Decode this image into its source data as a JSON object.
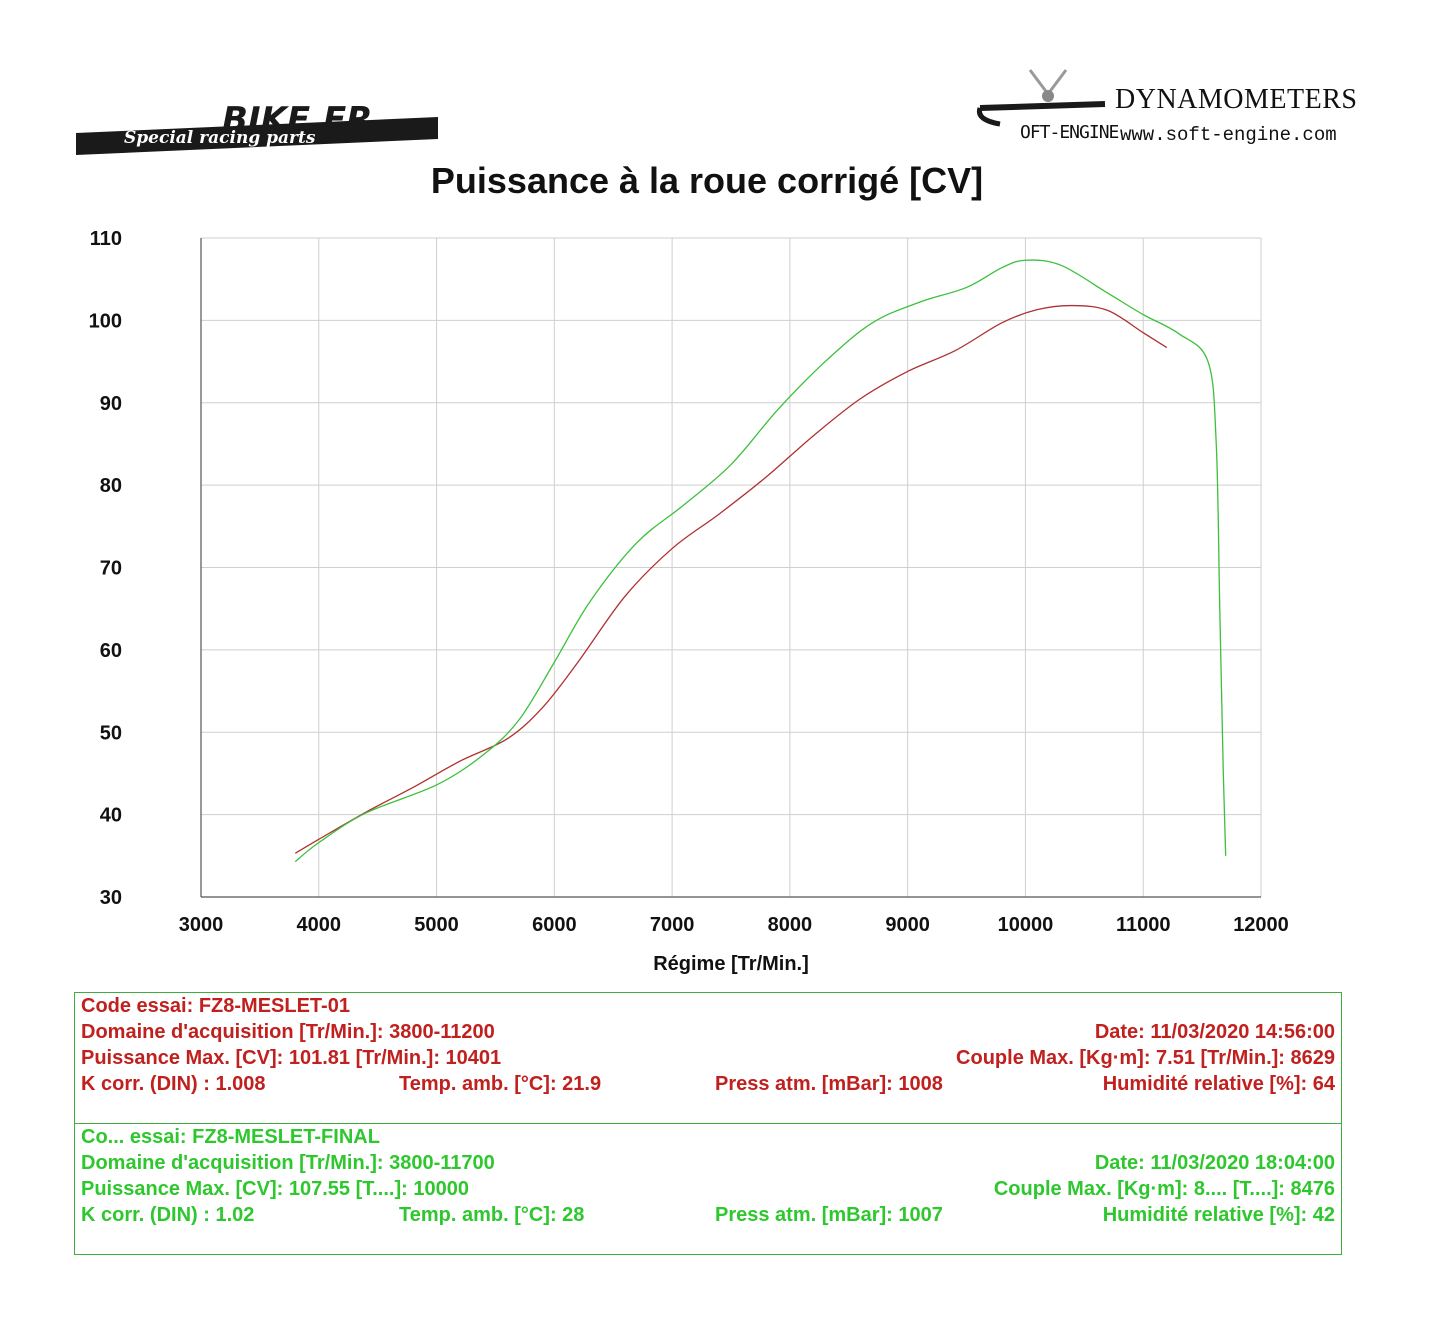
{
  "header": {
    "logo_left_text": "BIKE.FR",
    "logo_left_tagline": "Special racing parts",
    "logo_right_title": "DYNAMOMETERS",
    "logo_right_brand": "OFT-ENGINE",
    "logo_right_url": "www.soft-engine.com"
  },
  "colors": {
    "run1": "#b03030",
    "run2": "#3cc03c",
    "grid": "#cfcfcf"
  },
  "chart_data": {
    "type": "line",
    "title": "Puissance à la roue corrigé [CV]",
    "xlabel": "Régime [Tr/Min.]",
    "ylabel": "",
    "xlim": [
      3000,
      12000
    ],
    "ylim": [
      30,
      110
    ],
    "x_ticks": [
      "3000",
      "4000",
      "5000",
      "6000",
      "7000",
      "8000",
      "9000",
      "10000",
      "11000",
      "12000"
    ],
    "y_ticks": [
      "110",
      "100",
      "90",
      "80",
      "70",
      "60",
      "50",
      "40",
      "30"
    ],
    "grid": true,
    "series": [
      {
        "name": "FZ8-MESLET-01",
        "color": "#b03030",
        "x": [
          3800,
          4000,
          4400,
          4800,
          5200,
          5600,
          5900,
          6200,
          6600,
          7000,
          7400,
          7800,
          8200,
          8600,
          9000,
          9400,
          9800,
          10100,
          10400,
          10700,
          11000,
          11200
        ],
        "y": [
          35.3,
          37.0,
          40.3,
          43.3,
          46.5,
          49.2,
          53.0,
          58.5,
          66.5,
          72.3,
          76.5,
          81.0,
          86.0,
          90.5,
          93.8,
          96.3,
          99.7,
          101.3,
          101.8,
          101.2,
          98.5,
          96.7
        ]
      },
      {
        "name": "FZ8-MESLET-FINAL",
        "color": "#3cc03c",
        "x": [
          3800,
          4000,
          4400,
          5000,
          5400,
          5700,
          6000,
          6300,
          6700,
          7100,
          7500,
          7900,
          8300,
          8700,
          9100,
          9500,
          9800,
          10000,
          10300,
          10700,
          11000,
          11300,
          11550,
          11620,
          11650,
          11680,
          11700
        ],
        "y": [
          34.3,
          36.6,
          40.2,
          43.6,
          47.3,
          51.5,
          58.5,
          65.8,
          73.0,
          77.6,
          82.5,
          89.2,
          95.0,
          99.7,
          102.2,
          104.0,
          106.4,
          107.3,
          106.7,
          103.3,
          100.7,
          98.4,
          95.0,
          85.0,
          65.0,
          45.0,
          35.0
        ]
      }
    ]
  },
  "tests": [
    {
      "line1": "Code essai: FZ8-MESLET-01",
      "line2_left": "Domaine d'acquisition [Tr/Min.]: 3800-11200",
      "line2_right": "Date: 11/03/2020   14:56:00",
      "line3_left": "Puissance Max. [CV]: 101.81   [Tr/Min.]: 10401",
      "line3_right": "Couple Max. [Kg·m]: 7.51   [Tr/Min.]: 8629",
      "line4_a": "K corr. (DIN) : 1.008",
      "line4_b": "Temp. amb. [°C]: 21.9",
      "line4_c": "Press atm. [mBar]: 1008",
      "line4_d": "Humidité relative [%]: 64"
    },
    {
      "line1": "Co... essai: FZ8-MESLET-FINAL",
      "line2_left": "Domaine d'acquisition [Tr/Min.]: 3800-11700",
      "line2_right": "Date: 11/03/2020   18:04:00",
      "line3_left": "Puissance Max. [CV]: 107.55   [T....]: 10000",
      "line3_right": "Couple Max. [Kg·m]: 8....   [T....]: 8476",
      "line4_a": "K corr. (DIN) : 1.02",
      "line4_b": "Temp. amb. [°C]: 28",
      "line4_c": "Press atm. [mBar]: 1007",
      "line4_d": "Humidité relative [%]: 42"
    }
  ]
}
